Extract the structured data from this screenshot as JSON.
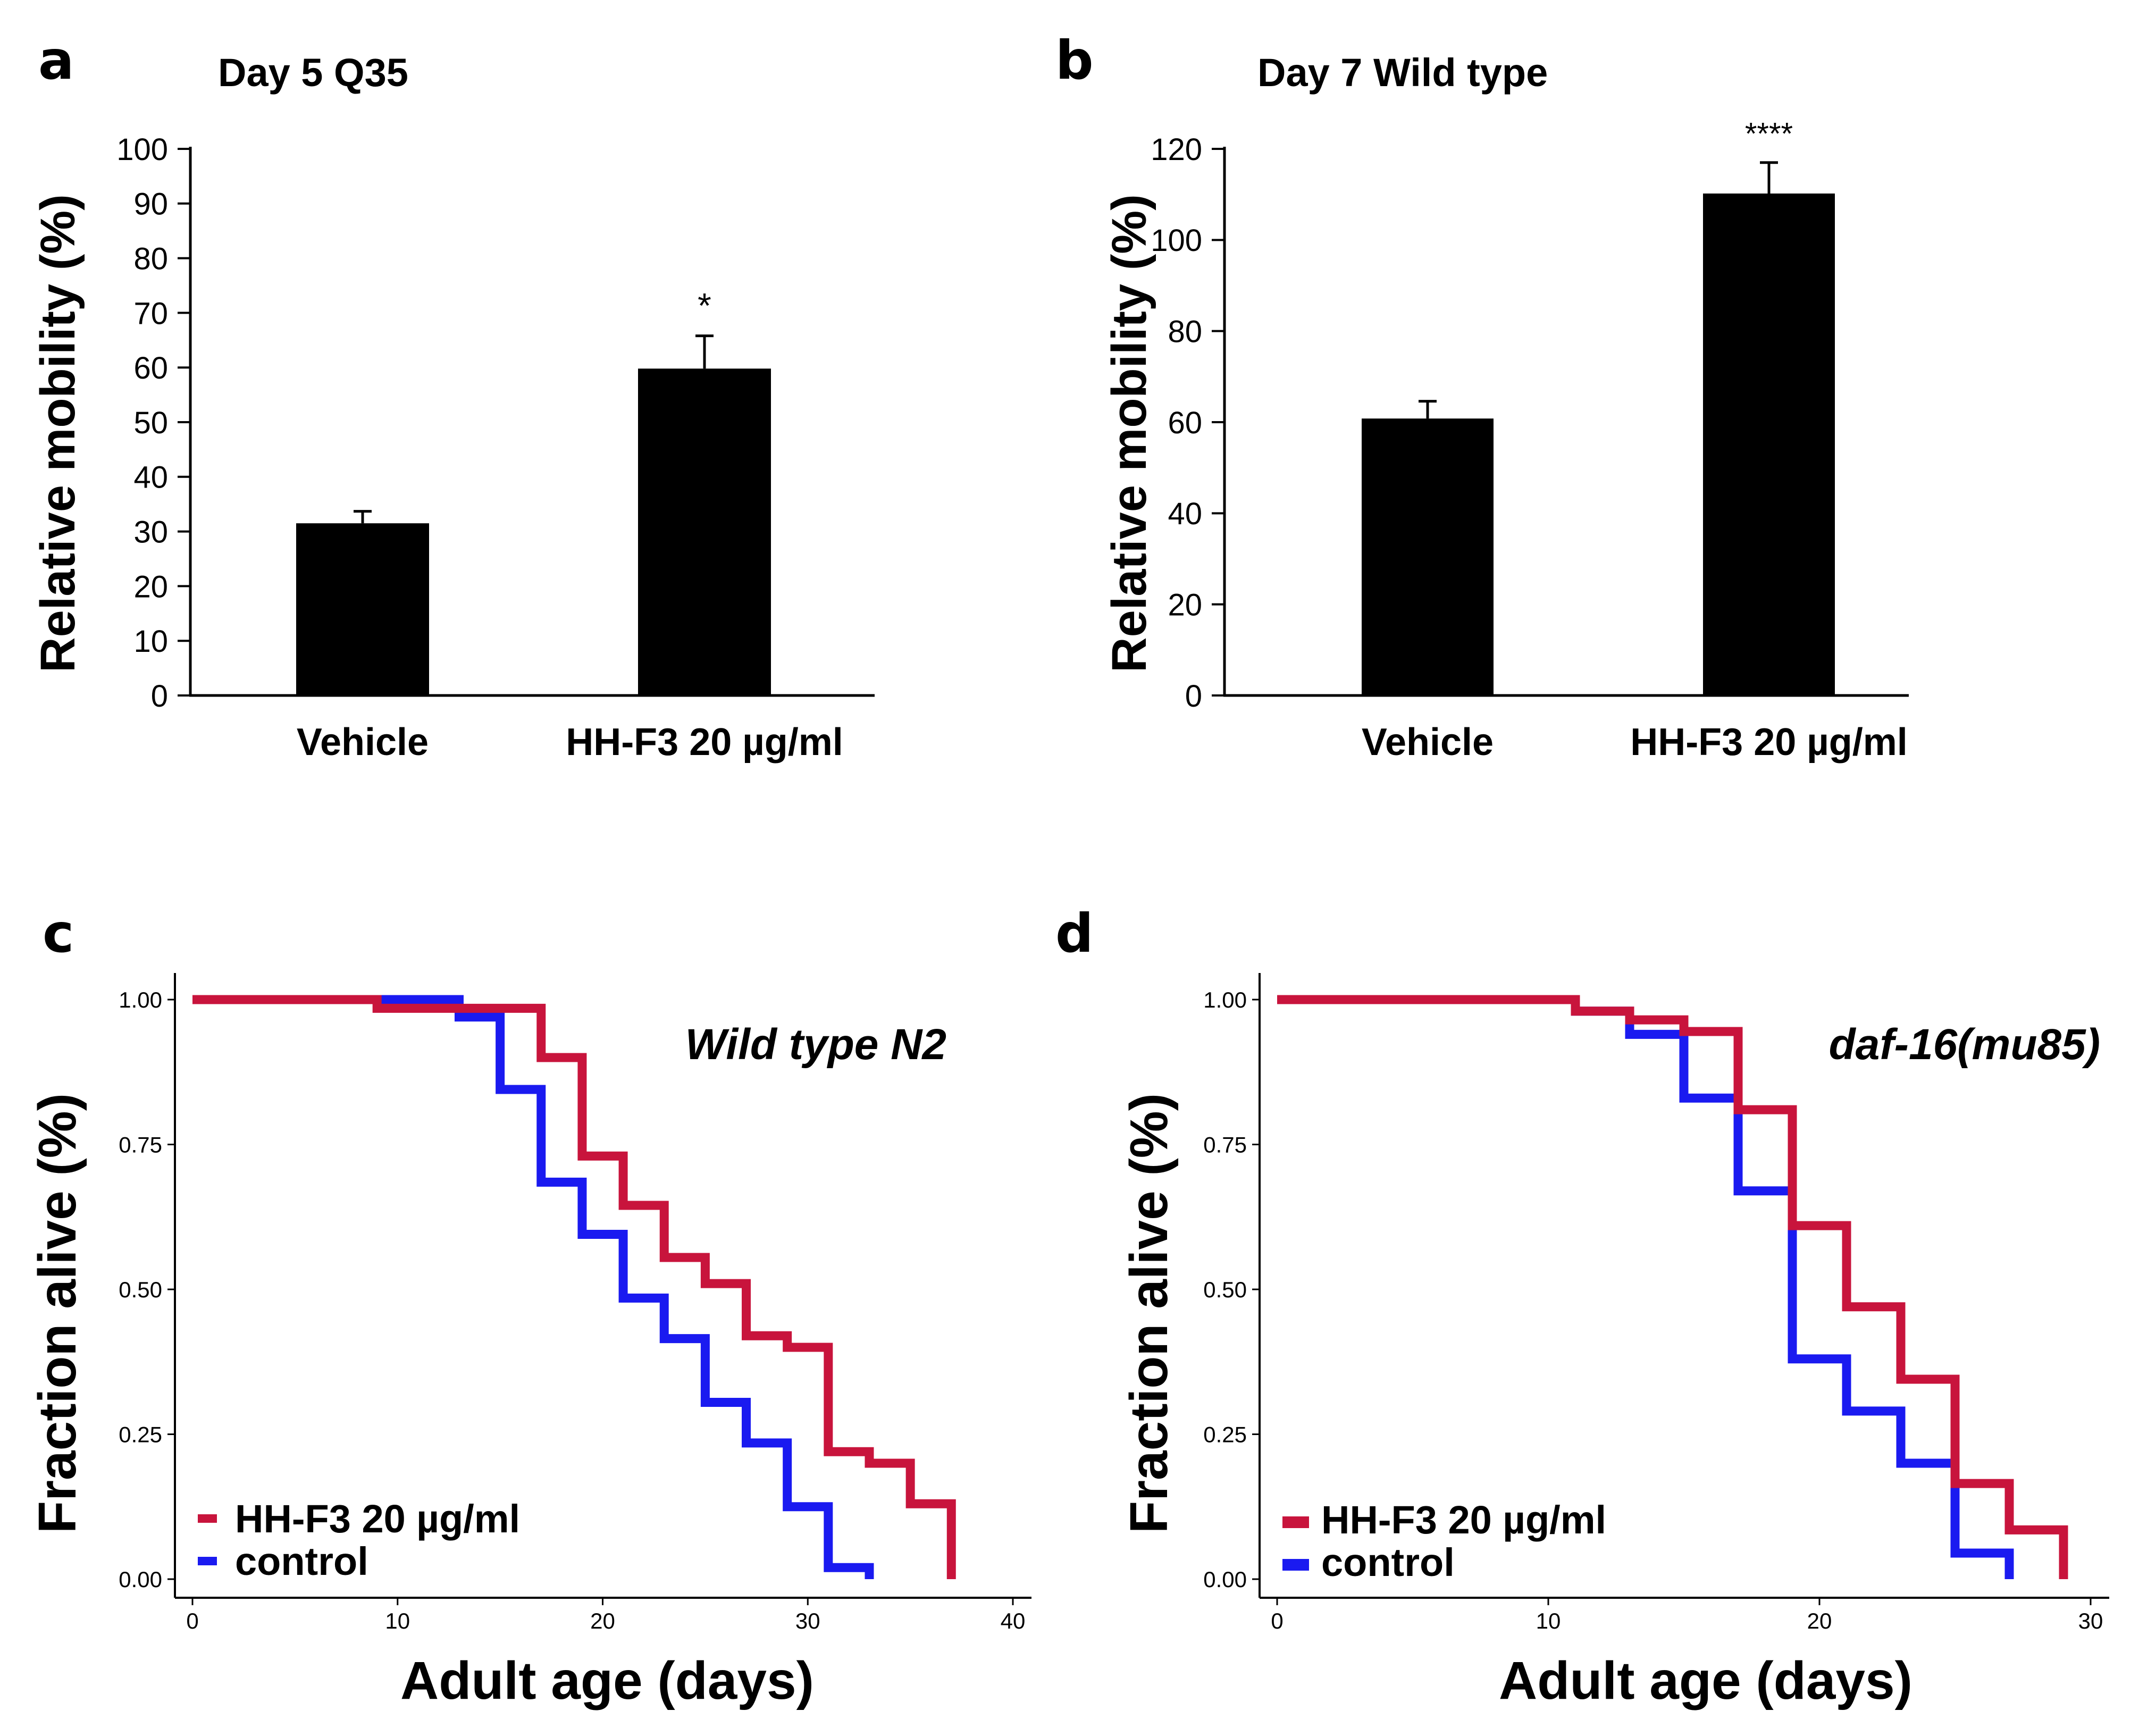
{
  "figure": {
    "panels": [
      "a",
      "b",
      "c",
      "d"
    ]
  },
  "colors": {
    "bar": "#000000",
    "treated": "#C8143C",
    "control": "#1A1AF0",
    "axis": "#000000"
  },
  "chart_data": [
    {
      "panel": "a",
      "type": "bar",
      "title": "Day 5 Q35",
      "xlabel": "",
      "ylabel": "Relative mobility (%)",
      "categories": [
        "Vehicle",
        "HH-F3 20 µg/ml"
      ],
      "values": [
        31.5,
        59.8
      ],
      "errors": [
        2.2,
        6.0
      ],
      "significance": [
        "",
        "*"
      ],
      "ylim": [
        0,
        100
      ],
      "yticks": [
        0,
        10,
        20,
        30,
        40,
        50,
        60,
        70,
        80,
        90,
        100
      ],
      "ytick_labels": [
        "0",
        "10",
        "20",
        "30",
        "40",
        "50",
        "60",
        "70",
        "80",
        "90",
        "100"
      ],
      "grid": false
    },
    {
      "panel": "b",
      "type": "bar",
      "title": "Day 7 Wild type",
      "xlabel": "",
      "ylabel": "Relative mobility (%)",
      "categories": [
        "Vehicle",
        "HH-F3 20 µg/ml"
      ],
      "values": [
        60.8,
        110.2
      ],
      "errors": [
        3.8,
        6.8
      ],
      "significance": [
        "",
        "****"
      ],
      "ylim": [
        0,
        120
      ],
      "yticks": [
        0,
        20,
        40,
        60,
        80,
        100,
        120
      ],
      "ytick_labels": [
        "0",
        "20",
        "40",
        "60",
        "80",
        "100",
        "120"
      ],
      "grid": false
    },
    {
      "panel": "c",
      "type": "line",
      "subtype": "kaplan-meier step",
      "annotation": "Wild type N2",
      "xlabel": "Adult age (days)",
      "ylabel": "Fraction alive (%)",
      "xlim": [
        0,
        40
      ],
      "ylim": [
        0,
        1
      ],
      "xticks": [
        0,
        10,
        20,
        30,
        40
      ],
      "xtick_labels": [
        "0",
        "10",
        "20",
        "30",
        "40"
      ],
      "yticks": [
        0,
        0.25,
        0.5,
        0.75,
        1.0
      ],
      "ytick_labels": [
        "0.00",
        "0.25",
        "0.50",
        "0.75",
        "1.00"
      ],
      "legend_position": "bottom-left",
      "series": [
        {
          "name": "HH-F3 20 µg/ml",
          "color_key": "treated",
          "x": [
            0,
            9,
            17,
            19,
            21,
            23,
            25,
            27,
            29,
            31,
            33,
            35,
            37
          ],
          "y": [
            1.0,
            0.985,
            0.9,
            0.73,
            0.645,
            0.555,
            0.51,
            0.42,
            0.4,
            0.22,
            0.2,
            0.13,
            0.0
          ]
        },
        {
          "name": "control",
          "color_key": "control",
          "x": [
            0,
            13,
            15,
            17,
            19,
            21,
            23,
            25,
            27,
            29,
            31,
            33
          ],
          "y": [
            1.0,
            0.97,
            0.845,
            0.685,
            0.595,
            0.485,
            0.415,
            0.305,
            0.235,
            0.125,
            0.02,
            0.0
          ]
        }
      ]
    },
    {
      "panel": "d",
      "type": "line",
      "subtype": "kaplan-meier step",
      "annotation": "daf-16(mu85)",
      "xlabel": "Adult age (days)",
      "ylabel": "Fraction alive (%)",
      "xlim": [
        0,
        30
      ],
      "ylim": [
        0,
        1
      ],
      "xticks": [
        0,
        10,
        20,
        30
      ],
      "xtick_labels": [
        "0",
        "10",
        "20",
        "30"
      ],
      "yticks": [
        0,
        0.25,
        0.5,
        0.75,
        1.0
      ],
      "ytick_labels": [
        "0.00",
        "0.25",
        "0.50",
        "0.75",
        "1.00"
      ],
      "legend_position": "bottom-left",
      "series": [
        {
          "name": "HH-F3 20 µg/ml",
          "color_key": "treated",
          "x": [
            0,
            11,
            13,
            15,
            17,
            19,
            21,
            23,
            25,
            27,
            29
          ],
          "y": [
            1.0,
            0.98,
            0.965,
            0.945,
            0.81,
            0.61,
            0.47,
            0.345,
            0.165,
            0.085,
            0.0
          ]
        },
        {
          "name": "control",
          "color_key": "control",
          "x": [
            0,
            11,
            13,
            15,
            17,
            19,
            21,
            23,
            25,
            27
          ],
          "y": [
            1.0,
            0.98,
            0.94,
            0.83,
            0.67,
            0.38,
            0.29,
            0.2,
            0.045,
            0.0
          ]
        }
      ]
    }
  ]
}
